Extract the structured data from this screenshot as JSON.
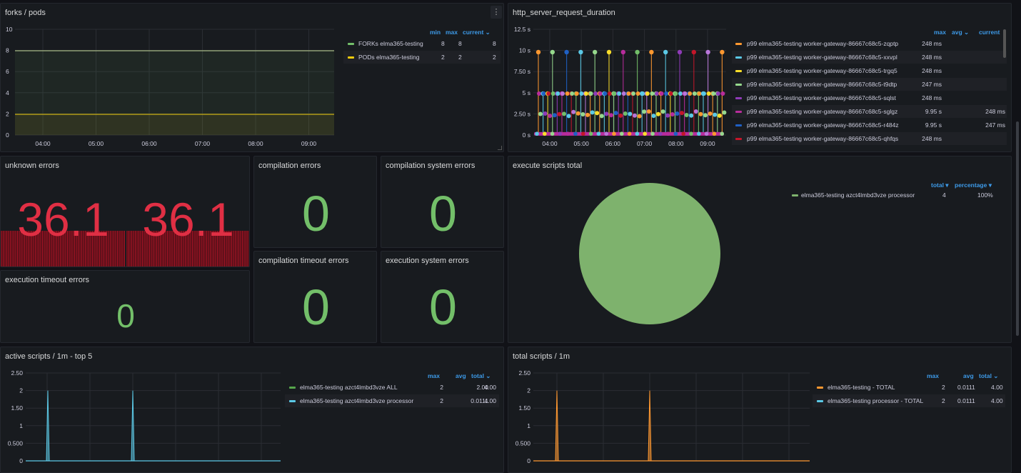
{
  "colors": {
    "green": "#73bf69",
    "yellow": "#f2cc0c",
    "red": "#e02f44",
    "blue": "#3d9ae8",
    "orange": "#ff9830",
    "cyan": "#5bc9e6",
    "pieGreen": "#7eb26d"
  },
  "forks_pods": {
    "title": "forks / pods",
    "menu_icon": "kebab-menu-icon",
    "legend_headers": {
      "min": "min",
      "max": "max",
      "current": "current ⌄"
    },
    "series": [
      {
        "name": "FORKs elma365-testing",
        "min": "8",
        "max": "8",
        "current": "8",
        "color": "#73bf69"
      },
      {
        "name": "PODs elma365-testing",
        "min": "2",
        "max": "2",
        "current": "2",
        "color": "#f2cc0c"
      }
    ],
    "y_ticks": [
      "10",
      "8",
      "6",
      "4",
      "2",
      "0"
    ],
    "x_ticks": [
      "04:00",
      "05:00",
      "06:00",
      "07:00",
      "08:00",
      "09:00"
    ]
  },
  "http": {
    "title": "http_server_request_duration",
    "legend_headers": {
      "max": "max",
      "avg": "avg ⌄",
      "current": "current"
    },
    "series": [
      {
        "name": "p99 elma365-testing worker-gateway-86667c68c5-zqptp",
        "max": "248 ms",
        "current": "",
        "color": "#ff9830"
      },
      {
        "name": "p99 elma365-testing worker-gateway-86667c68c5-xxvpl",
        "max": "248 ms",
        "current": "",
        "color": "#5bc9e6"
      },
      {
        "name": "p99 elma365-testing worker-gateway-86667c68c5-trgq5",
        "max": "248 ms",
        "current": "",
        "color": "#fade2a"
      },
      {
        "name": "p99 elma365-testing worker-gateway-86667c68c5-t9dtp",
        "max": "247 ms",
        "current": "",
        "color": "#96d98d"
      },
      {
        "name": "p99 elma365-testing worker-gateway-86667c68c5-sqlst",
        "max": "248 ms",
        "current": "",
        "color": "#8f3bb8"
      },
      {
        "name": "p99 elma365-testing worker-gateway-86667c68c5-sglgz",
        "max": "9.95 s",
        "current": "248 ms",
        "color": "#b82c9c"
      },
      {
        "name": "p99 elma365-testing worker-gateway-86667c68c5-r484z",
        "max": "9.95 s",
        "current": "247 ms",
        "color": "#1f60c4"
      },
      {
        "name": "p99 elma365-testing worker-gateway-86667c68c5-qhfqs",
        "max": "248 ms",
        "current": "",
        "color": "#c4162a"
      }
    ],
    "y_ticks": [
      "12.5 s",
      "10 s",
      "7.50 s",
      "5 s",
      "2.50 s",
      "0 s"
    ],
    "x_ticks": [
      "04:00",
      "05:00",
      "06:00",
      "07:00",
      "08:00",
      "09:00"
    ]
  },
  "unknown_errors": {
    "title": "unknown errors",
    "values": [
      "36.1",
      "36.1"
    ]
  },
  "compilation_errors": {
    "title": "compilation errors",
    "value": "0"
  },
  "compilation_system_errors": {
    "title": "compilation system errors",
    "value": "0"
  },
  "compilation_timeout_errors": {
    "title": "compilation timeout errors",
    "value": "0"
  },
  "execution_system_errors": {
    "title": "execution system errors",
    "value": "0"
  },
  "execution_timeout_errors": {
    "title": "execution timeout errors",
    "value": "0"
  },
  "execute_scripts_total": {
    "title": "execute scripts total",
    "legend_headers": {
      "total": "total ▾",
      "percentage": "percentage ▾"
    },
    "series": [
      {
        "name": "elma365-testing azct4lmbd3vze processor",
        "total": "4",
        "percentage": "100%",
        "color": "#7eb26d"
      }
    ]
  },
  "active_scripts": {
    "title": "active scripts / 1m - top 5",
    "legend_headers": {
      "max": "max",
      "avg": "avg",
      "total": "total ⌄"
    },
    "series": [
      {
        "name": "elma365-testing azct4lmbd3vze ALL",
        "max": "2",
        "avg": "2.00",
        "total": "4.00",
        "color": "#56a64b"
      },
      {
        "name": "elma365-testing azct4lmbd3vze processor",
        "max": "2",
        "avg": "0.0111",
        "total": "4.00",
        "color": "#5bc9e6"
      }
    ],
    "y_ticks": [
      "2.50",
      "2",
      "1.50",
      "1",
      "0.500",
      "0"
    ]
  },
  "total_scripts": {
    "title": "total scripts / 1m",
    "legend_headers": {
      "max": "max",
      "avg": "avg",
      "total": "total ⌄"
    },
    "series": [
      {
        "name": "elma365-testing - TOTAL",
        "max": "2",
        "avg": "0.0111",
        "total": "4.00",
        "color": "#ff9830"
      },
      {
        "name": "elma365-testing processor - TOTAL",
        "max": "2",
        "avg": "0.0111",
        "total": "4.00",
        "color": "#5bc9e6"
      }
    ],
    "y_ticks": [
      "2.50",
      "2",
      "1.50",
      "1",
      "0.500",
      "0"
    ]
  },
  "chart_data": [
    {
      "type": "line",
      "title": "forks / pods",
      "x": [
        "04:00",
        "05:00",
        "06:00",
        "07:00",
        "08:00",
        "09:00"
      ],
      "ylim": [
        0,
        10
      ],
      "series": [
        {
          "name": "FORKs elma365-testing",
          "values": [
            8,
            8,
            8,
            8,
            8,
            8
          ]
        },
        {
          "name": "PODs elma365-testing",
          "values": [
            2,
            2,
            2,
            2,
            2,
            2
          ]
        }
      ]
    },
    {
      "type": "scatter",
      "title": "http_server_request_duration",
      "x": [
        "04:00",
        "05:00",
        "06:00",
        "07:00",
        "08:00",
        "09:00"
      ],
      "ylim": [
        0,
        12.5
      ],
      "series": [
        {
          "name": "p99 elma365-testing worker-gateway-86667c68c5-sglgz",
          "max": 9.95
        },
        {
          "name": "p99 elma365-testing worker-gateway-86667c68c5-r484z",
          "max": 9.95
        }
      ]
    },
    {
      "type": "pie",
      "title": "execute scripts total",
      "categories": [
        "elma365-testing azct4lmbd3vze processor"
      ],
      "values": [
        4
      ]
    },
    {
      "type": "line",
      "title": "active scripts / 1m - top 5",
      "ylim": [
        0,
        2.5
      ],
      "spikes": [
        2,
        2
      ]
    },
    {
      "type": "line",
      "title": "total scripts / 1m",
      "ylim": [
        0,
        2.5
      ],
      "spikes": [
        2,
        2
      ]
    }
  ]
}
